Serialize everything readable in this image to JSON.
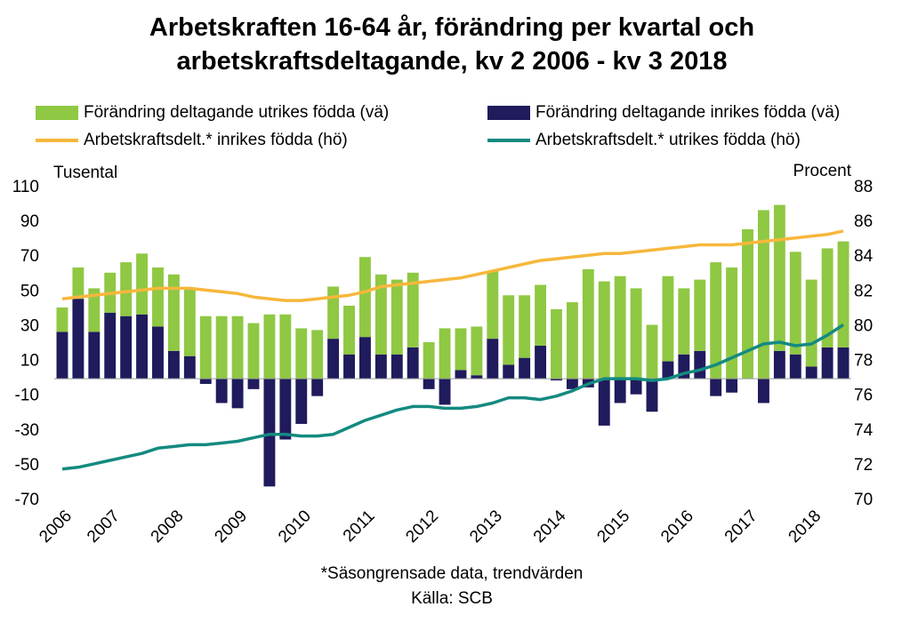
{
  "chart_data": {
    "type": "bar",
    "title": "Arbetskraften 16-64 år, förändring per kvartal och arbetskraftsdeltagande, kv 2 2006 - kv 3 2018",
    "ylabel": "Tusental",
    "y2label": "Procent",
    "footnote": "*Säsongrensade data, trendvärden",
    "source": "Källa: SCB",
    "categories": [
      "2006",
      null,
      null,
      "2007",
      null,
      null,
      null,
      "2008",
      null,
      null,
      null,
      "2009",
      null,
      null,
      null,
      "2010",
      null,
      null,
      null,
      "2011",
      null,
      null,
      null,
      "2012",
      null,
      null,
      null,
      "2013",
      null,
      null,
      null,
      "2014",
      null,
      null,
      null,
      "2015",
      null,
      null,
      null,
      "2016",
      null,
      null,
      null,
      "2017",
      null,
      null,
      null,
      "2018",
      null,
      null
    ],
    "ylim": [
      -70,
      110
    ],
    "yticks": [
      -70,
      -50,
      -30,
      -10,
      10,
      30,
      50,
      70,
      90,
      110
    ],
    "y2lim": [
      70,
      88
    ],
    "y2ticks": [
      70,
      72,
      74,
      76,
      78,
      80,
      82,
      84,
      86,
      88
    ],
    "series": [
      {
        "name": "Förändring deltagande utrikes födda (vä)",
        "type": "bar",
        "color": "#8fc843",
        "values": [
          14,
          18,
          25,
          23,
          31,
          35,
          34,
          44,
          39,
          36,
          36,
          36,
          32,
          37,
          37,
          29,
          28,
          30,
          28,
          46,
          46,
          43,
          43,
          21,
          29,
          24,
          28,
          39,
          40,
          36,
          35,
          40,
          44,
          63,
          56,
          59,
          52,
          31,
          49,
          38,
          41,
          67,
          64,
          86,
          97,
          84,
          59,
          50,
          57,
          61
        ]
      },
      {
        "name": "Förändring deltagande inrikes födda (vä)",
        "type": "bar",
        "color": "#1f1b5c",
        "values": [
          27,
          46,
          27,
          38,
          36,
          37,
          30,
          16,
          13,
          -3,
          -14,
          -17,
          -6,
          -62,
          -35,
          -26,
          -10,
          23,
          14,
          24,
          14,
          14,
          18,
          -6,
          -15,
          5,
          2,
          23,
          8,
          12,
          19,
          -1,
          -6,
          -5,
          -27,
          -14,
          -9,
          -19,
          10,
          14,
          16,
          -10,
          -8,
          0,
          -14,
          16,
          14,
          7,
          18,
          18
        ]
      },
      {
        "name": "Arbetskraftsdelt.* inrikes födda  (hö)",
        "type": "line",
        "axis": "y2",
        "color": "#f7b73c",
        "values": [
          81.6,
          81.7,
          81.8,
          81.9,
          82.0,
          82.1,
          82.2,
          82.2,
          82.2,
          82.1,
          82.0,
          81.9,
          81.7,
          81.6,
          81.5,
          81.5,
          81.6,
          81.7,
          81.8,
          82.0,
          82.3,
          82.4,
          82.5,
          82.6,
          82.7,
          82.8,
          83.0,
          83.2,
          83.4,
          83.6,
          83.8,
          83.9,
          84.0,
          84.1,
          84.2,
          84.2,
          84.3,
          84.4,
          84.5,
          84.6,
          84.7,
          84.7,
          84.7,
          84.8,
          84.9,
          85.0,
          85.1,
          85.2,
          85.3,
          85.5
        ]
      },
      {
        "name": "Arbetskraftsdelt.* utrikes födda (hö)",
        "type": "line",
        "axis": "y2",
        "color": "#148a80",
        "values": [
          71.8,
          71.9,
          72.1,
          72.3,
          72.5,
          72.7,
          73.0,
          73.1,
          73.2,
          73.2,
          73.3,
          73.4,
          73.6,
          73.8,
          73.8,
          73.7,
          73.7,
          73.8,
          74.2,
          74.6,
          74.9,
          75.2,
          75.4,
          75.4,
          75.3,
          75.3,
          75.4,
          75.6,
          75.9,
          75.9,
          75.8,
          76.0,
          76.3,
          76.7,
          77.0,
          77.0,
          77.0,
          76.9,
          77.0,
          77.3,
          77.5,
          77.8,
          78.2,
          78.6,
          79.0,
          79.1,
          78.9,
          79.0,
          79.5,
          80.1
        ]
      }
    ]
  }
}
